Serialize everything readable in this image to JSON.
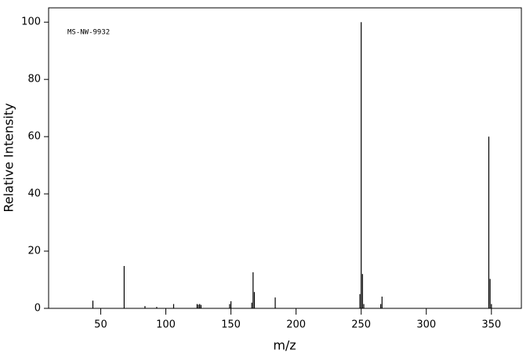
{
  "chart_data": {
    "type": "stem",
    "annotation": "MS-NW-9932",
    "x_label": "m/z",
    "y_label": "Relative Intensity",
    "x": [
      44,
      68,
      84,
      93,
      106,
      124,
      125,
      126,
      127,
      149,
      150,
      166,
      167,
      168,
      184,
      249,
      250,
      251,
      252,
      265,
      266,
      348,
      349,
      350
    ],
    "values": [
      2.7,
      14.8,
      0.8,
      0.5,
      1.5,
      1.5,
      1.3,
      1.5,
      1.2,
      1.5,
      2.5,
      2,
      12.6,
      5.7,
      3.8,
      5,
      100,
      12,
      1.5,
      1.5,
      4.1,
      60,
      10.3,
      1.5
    ],
    "color": "#000000",
    "xlim": [
      10,
      373
    ],
    "ylim": [
      0,
      105
    ],
    "xticks": [
      50,
      100,
      150,
      200,
      250,
      300,
      350
    ],
    "yticks": [
      0,
      20,
      40,
      60,
      80,
      100
    ]
  }
}
